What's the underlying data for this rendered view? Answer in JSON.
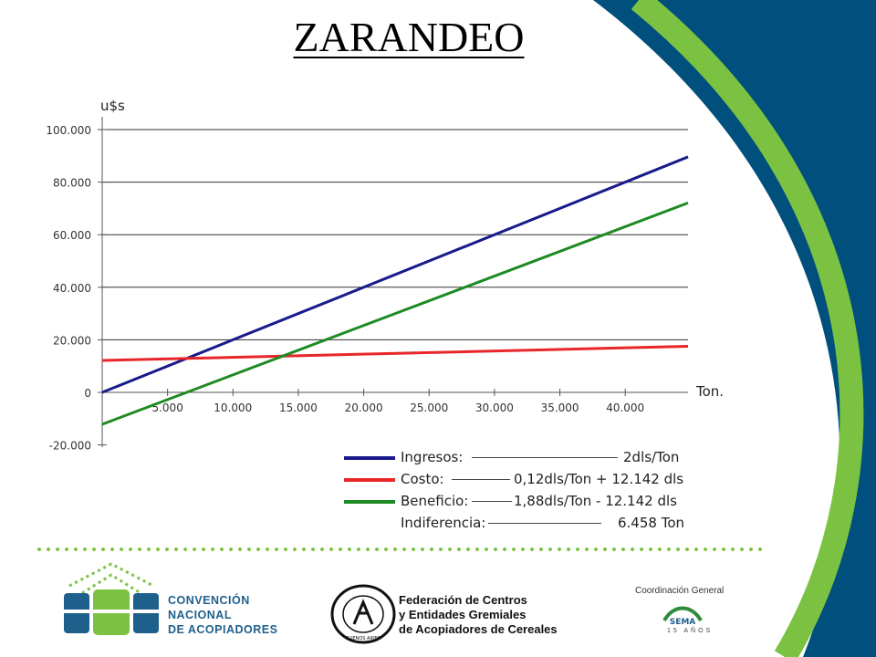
{
  "slide": {
    "title": "ZARANDEO"
  },
  "chart_data": {
    "type": "line",
    "ylabel": "u$s",
    "xlabel": "Ton.",
    "xlim": [
      0,
      44800
    ],
    "ylim": [
      -20000,
      100000
    ],
    "x_ticks": [
      5000,
      10000,
      15000,
      20000,
      25000,
      30000,
      35000,
      40000
    ],
    "x_tick_labels": [
      "5.000",
      "10.000",
      "15.000",
      "20.000",
      "25.000",
      "30.000",
      "35.000",
      "40.000"
    ],
    "y_ticks": [
      -20000,
      0,
      20000,
      40000,
      60000,
      80000,
      100000
    ],
    "y_tick_labels": [
      "-20.000",
      "0",
      "20.000",
      "40.000",
      "60.000",
      "80.000",
      "100.000"
    ],
    "grid": "horizontal",
    "series": [
      {
        "name": "Ingresos",
        "color": "#1a1a8c",
        "x": [
          0,
          44800
        ],
        "y": [
          0,
          89600
        ]
      },
      {
        "name": "Costo",
        "color": "#e8262a",
        "x": [
          0,
          44800
        ],
        "y": [
          12142,
          17518
        ]
      },
      {
        "name": "Beneficio",
        "color": "#1e8a22",
        "x": [
          0,
          44800
        ],
        "y": [
          -12142,
          72082
        ]
      }
    ]
  },
  "legend": {
    "ingresos": {
      "label": "Ingresos:",
      "formula": "2dls/Ton",
      "color": "#1a1a8c"
    },
    "costo": {
      "label": "Costo:",
      "formula": "0,12dls/Ton + 12.142  dls",
      "color": "#e8262a"
    },
    "beneficio": {
      "label": "Beneficio:",
      "formula": "1,88dls/Ton -  12.142  dls",
      "color": "#1e8a22"
    },
    "indiferencia": {
      "label": "Indiferencia:",
      "formula": "6.458 Ton"
    }
  },
  "footer": {
    "cna": {
      "line1": "CONVENCIÓN",
      "line2": "NACIONAL",
      "line3": "DE ACOPIADORES"
    },
    "federacion": {
      "line1": "Federación de Centros",
      "line2": "y Entidades Gremiales",
      "line3": "de Acopiadores de Cereales",
      "seal_text": "BUENOS AIRES"
    },
    "coordinacion": "Coordinación General",
    "sema": {
      "logo": "SEMA",
      "years": "15 AÑOS"
    }
  },
  "colors": {
    "dark_blue": "#004f7c",
    "accent_green": "#7cc242",
    "logo_blue": "#1f5f8b"
  }
}
